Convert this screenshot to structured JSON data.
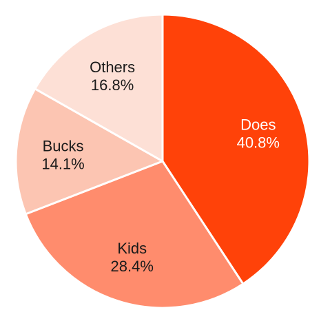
{
  "chart_data": {
    "type": "pie",
    "title": "",
    "start_angle_deg": 0,
    "direction": "clockwise",
    "slices": [
      {
        "label": "Does",
        "value": 40.8,
        "value_label": "40.8%",
        "color": "#ff4209"
      },
      {
        "label": "Kids",
        "value": 28.4,
        "value_label": "28.4%",
        "color": "#ff8c6d"
      },
      {
        "label": "Bucks",
        "value": 14.1,
        "value_label": "14.1%",
        "color": "#fcc5b2"
      },
      {
        "label": "Others",
        "value": 16.8,
        "value_label": "16.8%",
        "color": "#fde0d6"
      }
    ],
    "slice_border_color": "#ffffff",
    "legend": "none"
  }
}
